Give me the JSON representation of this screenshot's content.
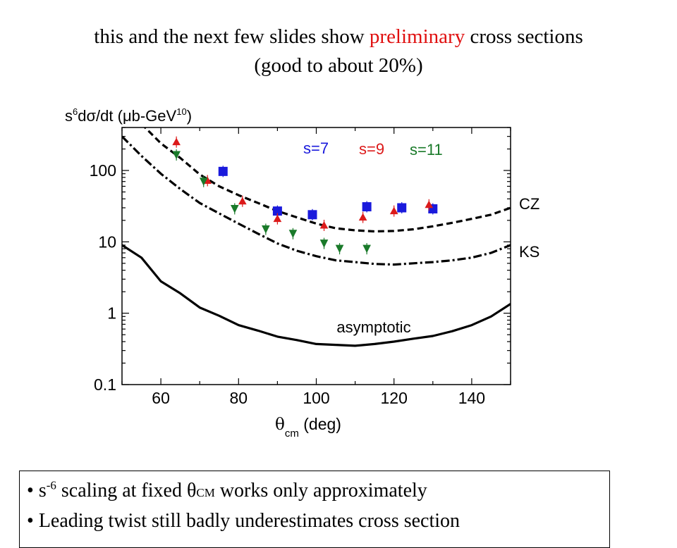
{
  "title": {
    "before": "this and the next few slides show ",
    "highlight": "preliminary",
    "after": " cross sections",
    "line2": "(good to about 20%)",
    "highlight_color": "#e01010"
  },
  "notes": {
    "bullet": "•",
    "line1_pre": "s",
    "line1_sup": "-6",
    "line1_mid": " scaling at fixed θ",
    "line1_sub": "CM",
    "line1_post": " works only approximately",
    "line2": "Leading twist still badly underestimates cross section"
  },
  "chart_data": {
    "type": "scatter",
    "log_y": true,
    "xlim": [
      50,
      150
    ],
    "ylim": [
      0.1,
      400
    ],
    "grid": false,
    "xticks": [
      "60",
      "80",
      "100",
      "120",
      "140"
    ],
    "yticks": [
      "0.1",
      "1",
      "10",
      "100"
    ],
    "ylabel_parts": {
      "s": "s",
      "sup": "6",
      "main": "dσ/dt (μb-GeV",
      "sup2": "10",
      "close": ")"
    },
    "xlabel_parts": {
      "theta": "θ",
      "sub": "cm",
      "rest": "(deg)"
    },
    "series": [
      {
        "name": "s=7",
        "color": "#1a1adc",
        "marker": "square",
        "x": [
          76,
          90,
          99,
          113,
          122,
          130
        ],
        "y": [
          97,
          27,
          24,
          31,
          30,
          29
        ]
      },
      {
        "name": "s=9",
        "color": "#dc1a1a",
        "marker": "triangle-up",
        "x": [
          64,
          72,
          81,
          90,
          102,
          112,
          120,
          129
        ],
        "y": [
          250,
          72,
          37,
          21,
          17,
          22,
          27,
          33
        ]
      },
      {
        "name": "s=11",
        "color": "#1a7a2a",
        "marker": "triangle-down",
        "x": [
          64,
          71,
          79,
          87,
          94,
          102,
          106,
          113
        ],
        "y": [
          165,
          70,
          29,
          15,
          13,
          9.5,
          8,
          8
        ]
      }
    ],
    "curves": [
      {
        "name": "CZ",
        "style": "dashed",
        "x": [
          55,
          60,
          65,
          70,
          75,
          80,
          85,
          90,
          95,
          100,
          105,
          110,
          115,
          120,
          125,
          130,
          135,
          140,
          145,
          150
        ],
        "y": [
          450,
          240,
          150,
          88,
          60,
          45,
          35,
          27,
          22,
          18,
          15.5,
          14.5,
          14,
          14.2,
          15,
          16.5,
          18.5,
          21,
          24,
          30
        ]
      },
      {
        "name": "KS",
        "style": "dashdot",
        "x": [
          50,
          55,
          60,
          65,
          70,
          75,
          80,
          85,
          90,
          95,
          100,
          105,
          110,
          115,
          120,
          125,
          130,
          135,
          140,
          145,
          150
        ],
        "y": [
          300,
          160,
          90,
          55,
          35,
          25,
          18,
          13,
          9.5,
          7.5,
          6.3,
          5.5,
          5.2,
          4.9,
          4.8,
          5,
          5.2,
          5.5,
          6,
          7,
          9
        ]
      },
      {
        "name": "asymptotic",
        "style": "solid",
        "x": [
          50,
          55,
          60,
          65,
          70,
          75,
          80,
          85,
          90,
          95,
          100,
          105,
          110,
          115,
          120,
          125,
          130,
          135,
          140,
          145,
          150
        ],
        "y": [
          9,
          6,
          2.8,
          1.9,
          1.2,
          0.92,
          0.68,
          0.57,
          0.47,
          0.42,
          0.37,
          0.36,
          0.35,
          0.37,
          0.4,
          0.44,
          0.48,
          0.56,
          0.68,
          0.9,
          1.35
        ]
      }
    ],
    "curve_labels": [
      "CZ",
      "KS",
      "asymptotic"
    ]
  }
}
